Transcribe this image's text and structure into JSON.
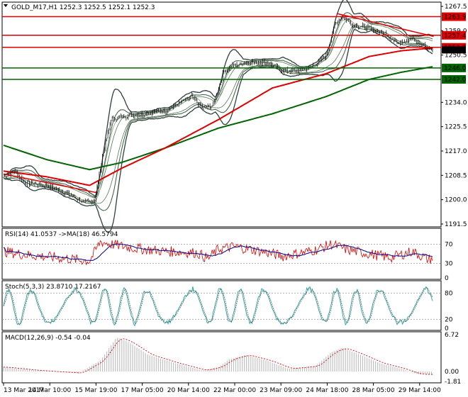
{
  "chart_data": {
    "type": "candlestick",
    "symbol_header": {
      "symbol": "GOLD_M17,H1",
      "ohlc": "1252.3 1252.5 1252.1 1252.3"
    },
    "x_ticks": [
      "13 Mar 2017",
      "14 Mar 10:00",
      "15 Mar 19:00",
      "17 Mar 05:00",
      "20 Mar 14:00",
      "22 Mar 00:00",
      "23 Mar 09:00",
      "24 Mar 18:00",
      "28 Mar 05:00",
      "29 Mar 14:00"
    ],
    "x_count": 400,
    "x_tick_index": [
      0,
      43,
      86,
      129,
      172,
      215,
      258,
      301,
      344,
      387
    ],
    "main": {
      "ylim": [
        1191.5,
        1267.5
      ],
      "y_ticks": [
        1267.5,
        1259.0,
        1250.5,
        1234.0,
        1225.5,
        1217.0,
        1208.5,
        1200.0,
        1191.5
      ],
      "price_series_knots": [
        [
          0,
          1208
        ],
        [
          10,
          1210
        ],
        [
          20,
          1206
        ],
        [
          40,
          1205
        ],
        [
          60,
          1202
        ],
        [
          75,
          1199
        ],
        [
          85,
          1200
        ],
        [
          92,
          1215
        ],
        [
          100,
          1228
        ],
        [
          110,
          1229
        ],
        [
          130,
          1230
        ],
        [
          150,
          1231
        ],
        [
          160,
          1233
        ],
        [
          175,
          1236
        ],
        [
          185,
          1232
        ],
        [
          195,
          1233
        ],
        [
          205,
          1245
        ],
        [
          215,
          1247
        ],
        [
          230,
          1248
        ],
        [
          245,
          1248
        ],
        [
          260,
          1245
        ],
        [
          275,
          1245
        ],
        [
          285,
          1246
        ],
        [
          300,
          1250
        ],
        [
          308,
          1261
        ],
        [
          315,
          1264
        ],
        [
          325,
          1261
        ],
        [
          340,
          1260
        ],
        [
          355,
          1258
        ],
        [
          365,
          1255
        ],
        [
          380,
          1256
        ],
        [
          395,
          1253
        ],
        [
          400,
          1252.3
        ]
      ],
      "ma_slow": {
        "color": "#006400",
        "knots": [
          [
            0,
            1219
          ],
          [
            40,
            1214
          ],
          [
            80,
            1210.5
          ],
          [
            110,
            1213
          ],
          [
            150,
            1218
          ],
          [
            200,
            1225
          ],
          [
            250,
            1230
          ],
          [
            300,
            1236
          ],
          [
            340,
            1242
          ],
          [
            370,
            1244.5
          ],
          [
            400,
            1246.5
          ]
        ]
      },
      "ma_medium": {
        "color": "#dd0000",
        "knots": [
          [
            0,
            1210
          ],
          [
            40,
            1208
          ],
          [
            80,
            1205
          ],
          [
            110,
            1211
          ],
          [
            150,
            1218
          ],
          [
            200,
            1228
          ],
          [
            250,
            1239
          ],
          [
            300,
            1244
          ],
          [
            340,
            1250
          ],
          [
            370,
            1252
          ],
          [
            400,
            1253
          ]
        ]
      },
      "bands_note": "",
      "horizontal_levels": [
        {
          "value": 1263.9,
          "label": "1263.9",
          "color": "#dd0000"
        },
        {
          "value": 1257.4,
          "label": "1257.4",
          "color": "#dd0000"
        },
        {
          "value": 1253.2,
          "label": "1253.2",
          "color": "#dd0000"
        },
        {
          "value": 1246.0,
          "label": "1246.0",
          "color": "#006400"
        },
        {
          "value": 1242.0,
          "label": "1242.0",
          "color": "#006400"
        }
      ],
      "current_price": {
        "value": 1252.3,
        "label": "1252.3"
      },
      "trend_lines": [
        {
          "color": "#dd0000",
          "from": [
            0,
            1209
          ],
          "to": [
            86,
            1202.5
          ]
        },
        {
          "color": "#dd0000",
          "from": [
            310,
            1265
          ],
          "to": [
            400,
            1257
          ]
        }
      ]
    },
    "rsi": {
      "label": "RSI(14) 41.0537  ->MA(18) 46.5794",
      "ylim": [
        0,
        100
      ],
      "y_ticks": [
        70,
        30,
        0
      ],
      "y_tick_labels": [
        "70",
        "30",
        "0"
      ],
      "color": "#dd0000",
      "ma_color": "#000080",
      "knots": [
        [
          0,
          55
        ],
        [
          20,
          48
        ],
        [
          50,
          42
        ],
        [
          80,
          35
        ],
        [
          90,
          75
        ],
        [
          100,
          70
        ],
        [
          120,
          62
        ],
        [
          150,
          55
        ],
        [
          180,
          52
        ],
        [
          190,
          40
        ],
        [
          200,
          60
        ],
        [
          215,
          65
        ],
        [
          240,
          55
        ],
        [
          260,
          45
        ],
        [
          290,
          58
        ],
        [
          305,
          70
        ],
        [
          320,
          58
        ],
        [
          340,
          50
        ],
        [
          360,
          42
        ],
        [
          380,
          55
        ],
        [
          395,
          38
        ],
        [
          400,
          41
        ]
      ]
    },
    "stoch": {
      "label": "Stoch(5,3,3) 23.8710 17.2167",
      "ylim": [
        0,
        100
      ],
      "y_ticks": [
        80,
        20,
        0
      ],
      "y_tick_labels": [
        "80",
        "20",
        "0"
      ],
      "color": "#20a0a0"
    },
    "macd": {
      "label": "MACD(12,26,9) -0.54 -0.04",
      "ylim": [
        -1.81,
        6.72
      ],
      "y_ticks": [
        6.72,
        0.0,
        -1.81
      ],
      "y_tick_labels": [
        "6.72",
        "0.00",
        "-1.81"
      ],
      "hist_color": "#c0c0c0",
      "signal_color": "#dd0000",
      "knots": [
        [
          0,
          0.8
        ],
        [
          30,
          0.2
        ],
        [
          70,
          -0.3
        ],
        [
          90,
          2.0
        ],
        [
          105,
          6.2
        ],
        [
          115,
          5.5
        ],
        [
          135,
          3.0
        ],
        [
          160,
          1.5
        ],
        [
          185,
          0.2
        ],
        [
          200,
          0.8
        ],
        [
          210,
          2.2
        ],
        [
          225,
          3.0
        ],
        [
          245,
          2.0
        ],
        [
          265,
          0.5
        ],
        [
          290,
          1.0
        ],
        [
          305,
          3.5
        ],
        [
          315,
          4.3
        ],
        [
          330,
          3.2
        ],
        [
          350,
          1.5
        ],
        [
          370,
          0.5
        ],
        [
          385,
          -0.5
        ],
        [
          400,
          -0.54
        ]
      ]
    }
  }
}
